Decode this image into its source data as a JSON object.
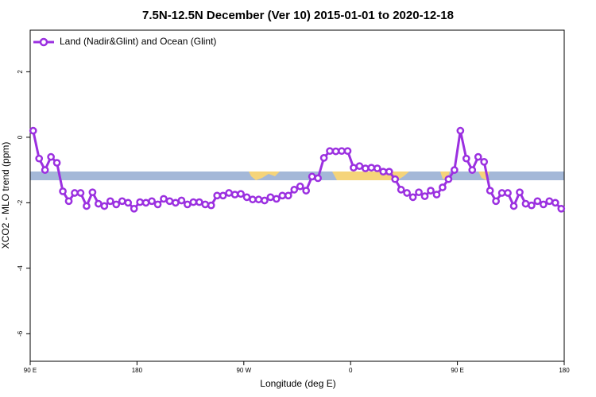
{
  "chart_data": {
    "type": "line",
    "title": "7.5N-12.5N December (Ver 10)   2015-01-01 to 2020-12-18",
    "xlabel": "Longitude (deg E)",
    "ylabel": "XCO2 - MLO trend (ppm)",
    "x": [
      92.5,
      97.5,
      102.5,
      107.5,
      112.5,
      117.5,
      122.5,
      127.5,
      132.5,
      137.5,
      142.5,
      147.5,
      152.5,
      157.5,
      162.5,
      167.5,
      172.5,
      177.5,
      182.5,
      187.5,
      192.5,
      197.5,
      202.5,
      207.5,
      212.5,
      217.5,
      222.5,
      227.5,
      232.5,
      237.5,
      242.5,
      247.5,
      252.5,
      257.5,
      262.5,
      267.5,
      272.5,
      277.5,
      282.5,
      287.5,
      292.5,
      297.5,
      302.5,
      307.5,
      312.5,
      317.5,
      322.5,
      327.5,
      332.5,
      337.5,
      342.5,
      347.5,
      352.5,
      357.5,
      362.5,
      367.5,
      372.5,
      377.5,
      382.5,
      387.5,
      392.5,
      397.5,
      402.5,
      407.5,
      412.5,
      417.5,
      422.5,
      427.5,
      432.5,
      437.5,
      442.5,
      447.5,
      452.5,
      457.5,
      462.5,
      467.5,
      472.5,
      477.5,
      482.5,
      487.5,
      492.5,
      497.5,
      502.5,
      507.5,
      512.5,
      517.5,
      522.5,
      527.5,
      532.5,
      537.5
    ],
    "series": [
      {
        "name": "Land (Nadir&Glint) and Ocean (Glint)",
        "color": "#9b30e0",
        "values": [
          0.2,
          -0.65,
          -1.0,
          -0.6,
          -0.78,
          -1.65,
          -1.95,
          -1.7,
          -1.7,
          -2.1,
          -1.68,
          -2.03,
          -2.1,
          -1.95,
          -2.05,
          -1.95,
          -2.0,
          -2.18,
          -1.98,
          -2.0,
          -1.95,
          -2.05,
          -1.88,
          -1.95,
          -2.0,
          -1.93,
          -2.05,
          -1.98,
          -1.98,
          -2.05,
          -2.08,
          -1.78,
          -1.78,
          -1.7,
          -1.75,
          -1.73,
          -1.83,
          -1.9,
          -1.9,
          -1.93,
          -1.83,
          -1.88,
          -1.78,
          -1.78,
          -1.6,
          -1.5,
          -1.63,
          -1.2,
          -1.25,
          -0.63,
          -0.42,
          -0.43,
          -0.42,
          -0.42,
          -0.93,
          -0.88,
          -0.95,
          -0.93,
          -0.95,
          -1.05,
          -1.05,
          -1.28,
          -1.6,
          -1.7,
          -1.83,
          -1.68,
          -1.8,
          -1.63,
          -1.75,
          -1.53,
          -1.28,
          -1.0,
          0.2,
          -0.65,
          -1.0,
          -0.6,
          -0.75,
          -1.63,
          -1.95,
          -1.7,
          -1.7,
          -2.1,
          -1.68,
          -2.03,
          -2.08,
          -1.95,
          -2.05,
          -1.95,
          -2.0,
          -2.18
        ]
      }
    ],
    "xlim": [
      90,
      540
    ],
    "ylim": [
      -6.84,
      3.27
    ],
    "xticks": [
      {
        "value": 90,
        "label": "90 E"
      },
      {
        "value": 180,
        "label": "180"
      },
      {
        "value": 270,
        "label": "90 W"
      },
      {
        "value": 360,
        "label": "0"
      },
      {
        "value": 450,
        "label": "90 E"
      },
      {
        "value": 540,
        "label": "180"
      }
    ],
    "yticks": [
      -6,
      -4,
      -2,
      0,
      2
    ],
    "legend": "upper left"
  }
}
